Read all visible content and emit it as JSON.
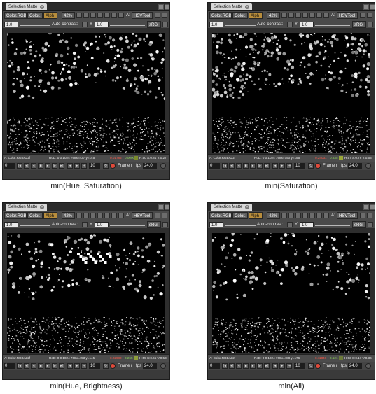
{
  "ui": {
    "tab_title": "Selection Matte",
    "tab_close": "×",
    "channel_rgb": "Color.RGB",
    "channel_color": "Color.",
    "channel_alpha": "Alph",
    "zoom": "42%",
    "hsv_label": "A:",
    "hsv_tool": "HSVTool",
    "gain": "1.0",
    "auto_contrast": "Auto-contrast:",
    "gamma_symbol": "Y",
    "gamma": "1.0",
    "colorspace": "sRG",
    "channel_info": "A: Color.RGBA32f",
    "frame_field": "0",
    "frame_count": "10",
    "frame_label": "Frame r",
    "fps_label": "fps",
    "fps": "24.0"
  },
  "panels": [
    {
      "caption": "min(Hue, Saturation)",
      "pixel_info": "RoD: 0 0 1024 768x=437 y=145",
      "value_red": "0.01786",
      "value_green": "0.0000",
      "value_hsv": "H:50 S:0.81 V:0.27",
      "swatch_color": "#7a8a2c"
    },
    {
      "caption": "min(Saturation)",
      "pixel_info": "RoD: 0 0 1024 768x=750 y=155",
      "value_red": "0.24031",
      "value_green": "0.335",
      "value_hsv": "H:57 S:0.76 V:0.53",
      "swatch_color": "#9aa73a"
    },
    {
      "caption": "min(Hue, Brightness)",
      "pixel_info": "RoD: 0 0 1024 768x=453 y=145",
      "value_red": "0.22980",
      "value_green": "0.265",
      "value_hsv": "H:55 S:0.65 V:0.53",
      "swatch_color": "#8c9c3a"
    },
    {
      "caption": "min(All)",
      "pixel_info": "RoD: 0 0 1024 768x=488 y=176",
      "value_red": "0.11846",
      "value_green": "0.121",
      "value_hsv": "H:63 S:0.17 V:0.36",
      "swatch_color": "#6c7a3a"
    }
  ],
  "colors": {
    "selected_chip": "#b88d3c",
    "value_red": "#ff5a4a",
    "value_green": "#8cd05a",
    "record_button": "#e04a3a"
  }
}
